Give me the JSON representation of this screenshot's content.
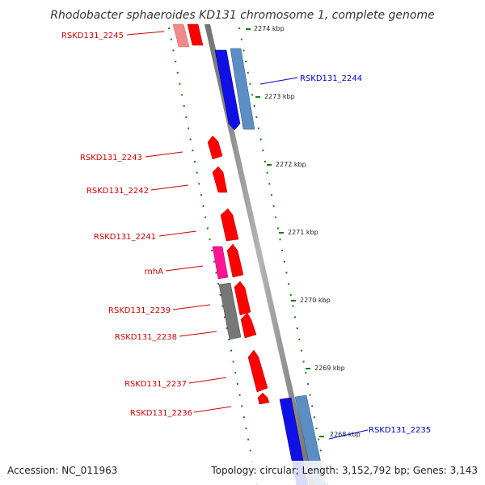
{
  "title": "Rhodobacter sphaeroides KD131 chromosome 1, complete genome",
  "footer": {
    "accession": "Accession: NC_011963",
    "summary": "Topology: circular; Length: 3,152,792 bp; Genes: 3,143"
  },
  "colors": {
    "backbone": "#8c8c8c",
    "tick": "#1a7a1a",
    "forward_gene": "#ff0000",
    "forward_gene_faded": "#f08a8a",
    "reverse_gene": "#1010e6",
    "reverse_gene_light": "#5b8ec2",
    "rna_gene": "#ff1493",
    "pseudo_gene": "#777777",
    "forward_label": "#cc0000",
    "reverse_label": "#0000cc"
  },
  "scale_labels": [
    "2274 kbp",
    "2273 kbp",
    "2272 kbp",
    "2271 kbp",
    "2270 kbp",
    "2269 kbp",
    "2268 kbp"
  ],
  "genes": [
    {
      "label": "RSKD131_2245",
      "strand": "forward"
    },
    {
      "label": "RSKD131_2244",
      "strand": "reverse"
    },
    {
      "label": "RSKD131_2243",
      "strand": "forward"
    },
    {
      "label": "RSKD131_2242",
      "strand": "forward"
    },
    {
      "label": "RSKD131_2241",
      "strand": "forward"
    },
    {
      "label": "rnhA",
      "strand": "forward"
    },
    {
      "label": "RSKD131_2239",
      "strand": "forward"
    },
    {
      "label": "RSKD131_2238",
      "strand": "forward"
    },
    {
      "label": "RSKD131_2237",
      "strand": "forward"
    },
    {
      "label": "RSKD131_2236",
      "strand": "forward"
    },
    {
      "label": "RSKD131_2235",
      "strand": "reverse"
    }
  ]
}
